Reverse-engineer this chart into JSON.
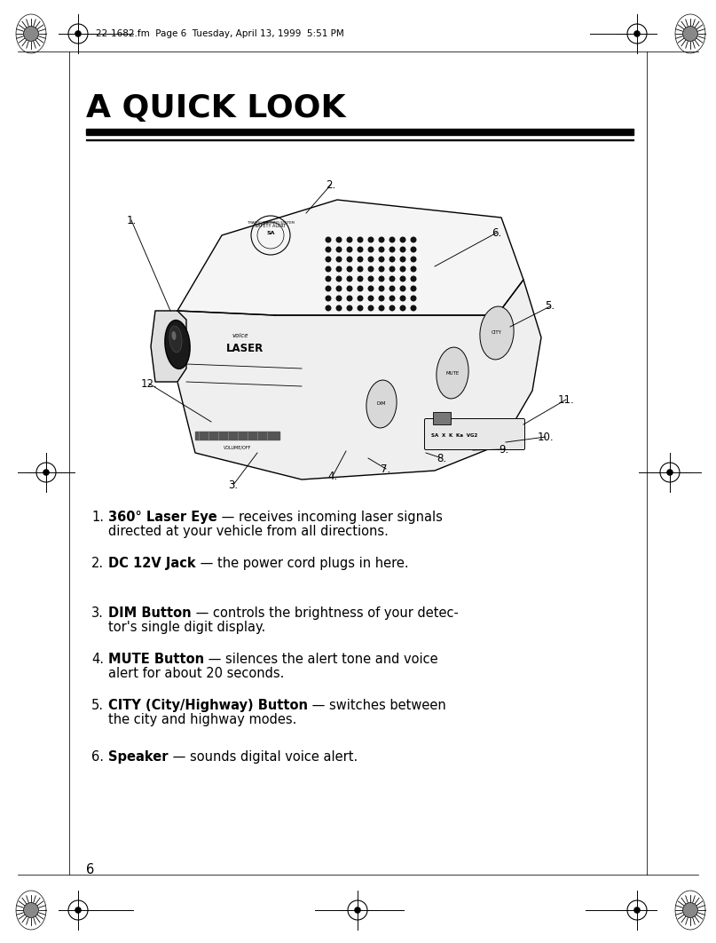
{
  "page_header": "22-1682.fm  Page 6  Tuesday, April 13, 1999  5:51 PM",
  "title": "A QUICK LOOK",
  "page_number": "6",
  "background_color": "#ffffff",
  "text_color": "#000000",
  "items": [
    {
      "num": 1,
      "bold": "360° Laser Eye",
      "dash": " — ",
      "text": "receives incoming laser signals\ndirected at your vehicle from all directions."
    },
    {
      "num": 2,
      "bold": "DC 12V Jack",
      "dash": " — ",
      "text": "the power cord plugs in here."
    },
    {
      "num": 3,
      "bold": "DIM Button",
      "dash": " — ",
      "text": "controls the brightness of your detec-\ntor's single digit display."
    },
    {
      "num": 4,
      "bold": "MUTE Button",
      "dash": " — ",
      "text": "silences the alert tone and voice\nalert for about 20 seconds."
    },
    {
      "num": 5,
      "bold": "CITY (City/Highway) Button",
      "dash": " — ",
      "text": "switches between\nthe city and highway modes."
    },
    {
      "num": 6,
      "bold": "Speaker",
      "dash": " — ",
      "text": "sounds digital voice alert."
    }
  ],
  "title_fontsize": 26,
  "body_fontsize": 10.5,
  "header_fontsize": 7.5,
  "num_fontsize": 10.5
}
